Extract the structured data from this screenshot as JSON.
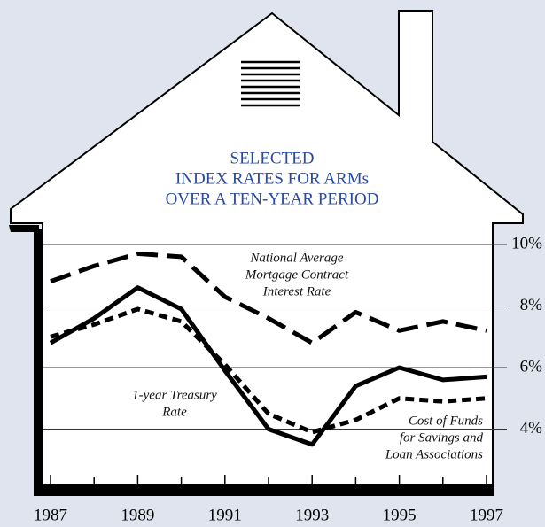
{
  "chart_data": {
    "type": "line",
    "title": [
      "SELECTED",
      "INDEX RATES FOR ARMs",
      "OVER A TEN-YEAR PERIOD"
    ],
    "x": [
      1987,
      1988,
      1989,
      1990,
      1991,
      1992,
      1993,
      1994,
      1995,
      1996,
      1997
    ],
    "xlim": [
      1987,
      1997
    ],
    "xticks": [
      1987,
      1989,
      1991,
      1993,
      1995,
      1997
    ],
    "x_minor_ticks": [
      1988,
      1990,
      1992,
      1994,
      1996
    ],
    "ylim": [
      2,
      10
    ],
    "yticks": [
      {
        "value": 10,
        "label": "10%"
      },
      {
        "value": 8,
        "label": "8%"
      },
      {
        "value": 6,
        "label": "6%"
      },
      {
        "value": 4,
        "label": "4%"
      }
    ],
    "grid": true,
    "series": [
      {
        "name": [
          "National Average",
          "Mortgage Contract",
          "Interest Rate"
        ],
        "color": "#000000",
        "dash": "long",
        "values": [
          8.8,
          9.3,
          9.7,
          9.6,
          8.3,
          7.6,
          6.8,
          7.8,
          7.2,
          7.5,
          7.2
        ]
      },
      {
        "name": [
          "1-year Treasury",
          "Rate"
        ],
        "color": "#000000",
        "dash": "solid",
        "values": [
          6.8,
          7.6,
          8.6,
          7.9,
          5.9,
          4.0,
          3.5,
          5.4,
          6.0,
          5.6,
          5.7
        ]
      },
      {
        "name": [
          "Cost of Funds",
          "for Savings and",
          "Loan Associations"
        ],
        "color": "#000000",
        "dash": "short",
        "values": [
          7.0,
          7.4,
          7.9,
          7.5,
          6.1,
          4.5,
          3.9,
          4.3,
          5.0,
          4.9,
          5.0
        ]
      }
    ]
  }
}
